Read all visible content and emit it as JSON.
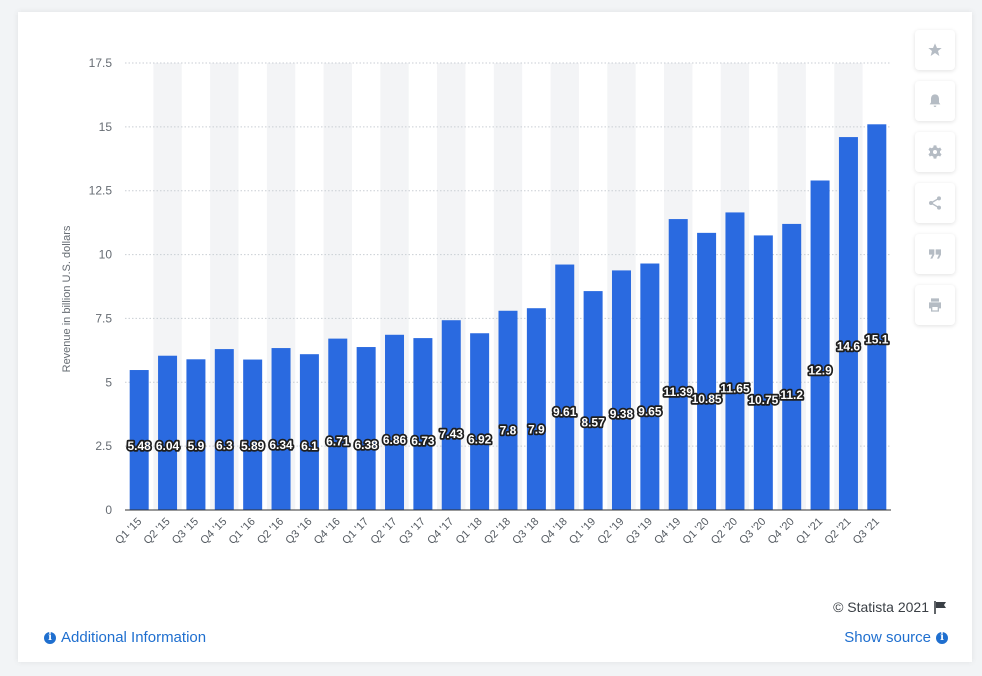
{
  "chart_data": {
    "type": "bar",
    "categories": [
      "Q1 '15",
      "Q2 '15",
      "Q3 '15",
      "Q4 '15",
      "Q1 '16",
      "Q2 '16",
      "Q3 '16",
      "Q4 '16",
      "Q1 '17",
      "Q2 '17",
      "Q3 '17",
      "Q4 '17",
      "Q1 '18",
      "Q2 '18",
      "Q3 '18",
      "Q4 '18",
      "Q1 '19",
      "Q2 '19",
      "Q3 '19",
      "Q4 '19",
      "Q1 '20",
      "Q2 '20",
      "Q3 '20",
      "Q4 '20",
      "Q1 '21",
      "Q2 '21",
      "Q3 '21"
    ],
    "values": [
      5.48,
      6.04,
      5.9,
      6.3,
      5.89,
      6.34,
      6.1,
      6.71,
      6.38,
      6.86,
      6.73,
      7.43,
      6.92,
      7.8,
      7.9,
      9.61,
      8.57,
      9.38,
      9.65,
      11.39,
      10.85,
      11.65,
      10.75,
      11.2,
      12.9,
      14.6,
      15.1
    ],
    "value_labels": [
      "5.48",
      "6.04",
      "5.9",
      "6.3",
      "5.89",
      "6.34",
      "6.1",
      "6.71",
      "6.38",
      "6.86",
      "6.73",
      "7.43",
      "6.92",
      "7.8",
      "7.9",
      "9.61",
      "8.57",
      "9.38",
      "9.65",
      "11.39",
      "10.85",
      "11.65",
      "10.75",
      "11.2",
      "12.9",
      "14.6",
      "15.1"
    ],
    "ylabel": "Revenue in billion U.S. dollars",
    "ylim": [
      0,
      17.5
    ],
    "yticks": [
      0,
      2.5,
      5,
      7.5,
      10,
      12.5,
      15,
      17.5
    ],
    "ytick_labels": [
      "0",
      "2.5",
      "5",
      "7.5",
      "10",
      "12.5",
      "15",
      "17.5"
    ],
    "grid": true,
    "bar_color": "#2a6ae0",
    "band_color": "#f3f4f6",
    "grid_color": "#c9ced4",
    "label_bg": "#1e1e1e"
  },
  "toolbar": {
    "buttons": [
      {
        "name": "star-icon"
      },
      {
        "name": "bell-icon"
      },
      {
        "name": "gear-icon"
      },
      {
        "name": "share-icon"
      },
      {
        "name": "quote-icon"
      },
      {
        "name": "print-icon"
      }
    ]
  },
  "footer": {
    "credits": "© Statista 2021",
    "additional_info": "Additional Information",
    "show_source": "Show source"
  },
  "colors": {
    "link": "#1f6fcf",
    "icon": "#b5bcc4"
  }
}
